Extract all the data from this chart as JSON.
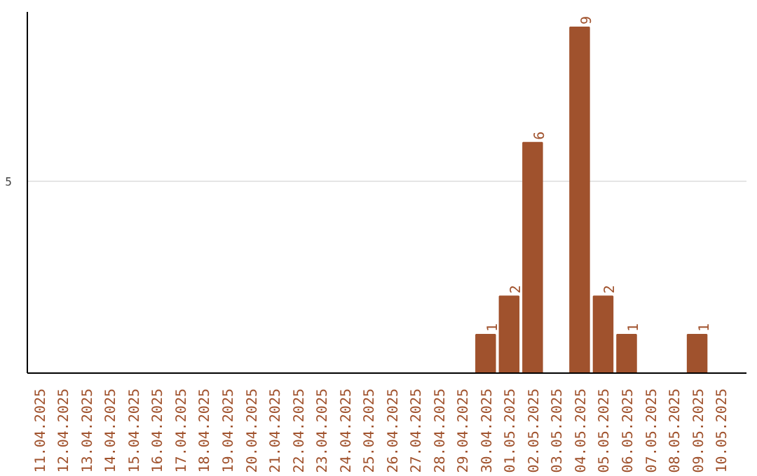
{
  "chart_data": {
    "type": "bar",
    "categories": [
      "11.04.2025",
      "12.04.2025",
      "13.04.2025",
      "14.04.2025",
      "15.04.2025",
      "16.04.2025",
      "17.04.2025",
      "18.04.2025",
      "19.04.2025",
      "20.04.2025",
      "21.04.2025",
      "22.04.2025",
      "23.04.2025",
      "24.04.2025",
      "25.04.2025",
      "26.04.2025",
      "27.04.2025",
      "28.04.2025",
      "29.04.2025",
      "30.04.2025",
      "01.05.2025",
      "02.05.2025",
      "03.05.2025",
      "04.05.2025",
      "05.05.2025",
      "06.05.2025",
      "07.05.2025",
      "08.05.2025",
      "09.05.2025",
      "10.05.2025"
    ],
    "values": [
      null,
      null,
      null,
      null,
      null,
      null,
      null,
      null,
      null,
      null,
      null,
      null,
      null,
      null,
      null,
      null,
      null,
      null,
      null,
      1,
      2,
      6,
      null,
      9,
      2,
      1,
      null,
      null,
      1,
      null
    ],
    "data_labels": true,
    "color": "#a0522d",
    "ylim": [
      0,
      9.4
    ],
    "yticks": [
      5
    ],
    "grid": "y"
  }
}
